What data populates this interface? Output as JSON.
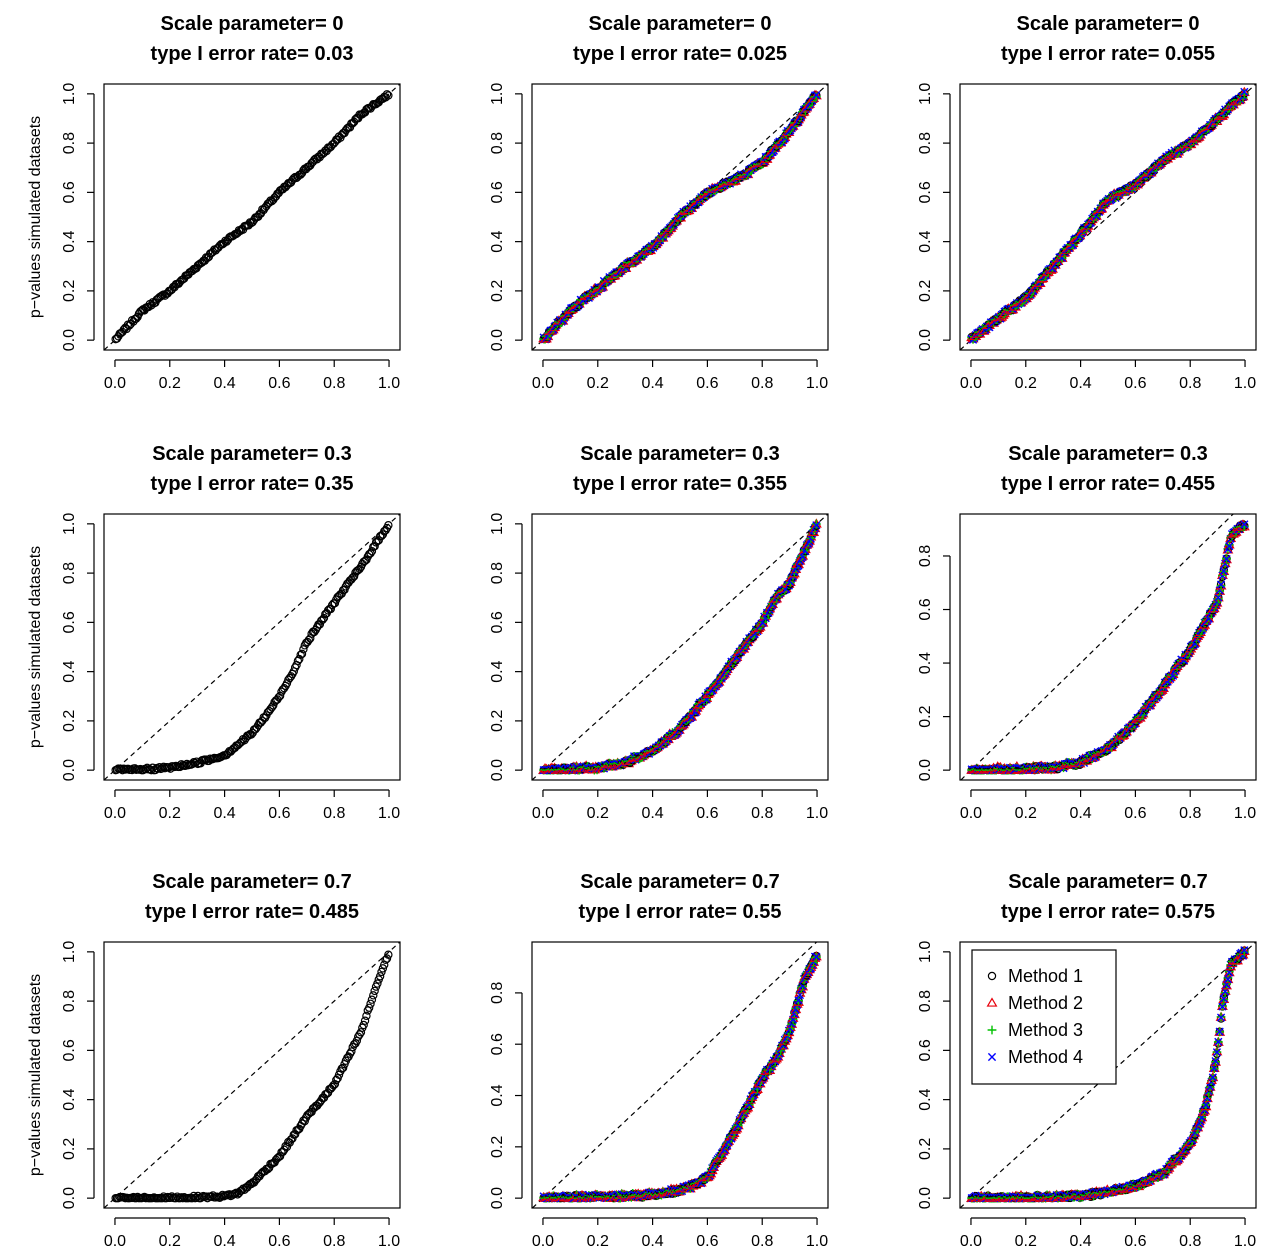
{
  "figure": {
    "ylabel": "p−values simulated datasets",
    "legend": {
      "placement": "top-left of bottom-right panel",
      "entries": [
        {
          "label": "Method 1",
          "marker": "circle",
          "color": "#000000"
        },
        {
          "label": "Method 2",
          "marker": "triangle",
          "color": "#e8000b"
        },
        {
          "label": "Method 3",
          "marker": "plus",
          "color": "#00c000"
        },
        {
          "label": "Method 4",
          "marker": "cross",
          "color": "#0000ff"
        }
      ]
    },
    "reference_line": "dashed diagonal y = x"
  },
  "chart_data": [
    {
      "type": "scatter",
      "title_line1": "Scale parameter= 0",
      "title_line2": "type I error rate= 0.03",
      "xlim": [
        0,
        1
      ],
      "ylim": [
        0,
        1
      ],
      "xticks": [
        "0.0",
        "0.2",
        "0.4",
        "0.6",
        "0.8",
        "1.0"
      ],
      "yticks": [
        "0.0",
        "0.2",
        "0.4",
        "0.6",
        "0.8",
        "1.0"
      ],
      "methods": 1,
      "series": [
        {
          "x": [
            0,
            0.1,
            0.2,
            0.3,
            0.4,
            0.5,
            0.6,
            0.7,
            0.8,
            0.9,
            1.0
          ],
          "y": [
            0,
            0.12,
            0.2,
            0.3,
            0.4,
            0.48,
            0.6,
            0.7,
            0.8,
            0.92,
            1.0
          ]
        }
      ]
    },
    {
      "type": "scatter",
      "title_line1": "Scale parameter= 0",
      "title_line2": "type I error rate= 0.025",
      "xlim": [
        0,
        1
      ],
      "ylim": [
        0,
        1
      ],
      "xticks": [
        "0.0",
        "0.2",
        "0.4",
        "0.6",
        "0.8",
        "1.0"
      ],
      "yticks": [
        "0.0",
        "0.2",
        "0.4",
        "0.6",
        "0.8",
        "1.0"
      ],
      "methods": 4,
      "series": [
        {
          "x": [
            0,
            0.1,
            0.2,
            0.3,
            0.4,
            0.5,
            0.6,
            0.7,
            0.8,
            0.9,
            1.0
          ],
          "y": [
            0,
            0.12,
            0.21,
            0.3,
            0.38,
            0.5,
            0.6,
            0.65,
            0.72,
            0.85,
            1.0
          ]
        }
      ]
    },
    {
      "type": "scatter",
      "title_line1": "Scale parameter= 0",
      "title_line2": "type I error rate= 0.055",
      "xlim": [
        0,
        1
      ],
      "ylim": [
        0,
        1
      ],
      "xticks": [
        "0.0",
        "0.2",
        "0.4",
        "0.6",
        "0.8",
        "1.0"
      ],
      "yticks": [
        "0.0",
        "0.2",
        "0.4",
        "0.6",
        "0.8",
        "1.0"
      ],
      "methods": 4,
      "series": [
        {
          "x": [
            0,
            0.1,
            0.2,
            0.3,
            0.4,
            0.5,
            0.6,
            0.7,
            0.8,
            0.9,
            1.0
          ],
          "y": [
            0,
            0.09,
            0.17,
            0.3,
            0.43,
            0.57,
            0.63,
            0.73,
            0.8,
            0.9,
            1.0
          ]
        }
      ]
    },
    {
      "type": "scatter",
      "title_line1": "Scale parameter= 0.3",
      "title_line2": "type I error rate= 0.35",
      "xlim": [
        0,
        1
      ],
      "ylim": [
        0,
        1
      ],
      "xticks": [
        "0.0",
        "0.2",
        "0.4",
        "0.6",
        "0.8",
        "1.0"
      ],
      "yticks": [
        "0.0",
        "0.2",
        "0.4",
        "0.6",
        "0.8",
        "1.0"
      ],
      "methods": 1,
      "series": [
        {
          "x": [
            0,
            0.1,
            0.2,
            0.3,
            0.4,
            0.5,
            0.55,
            0.6,
            0.65,
            0.7,
            0.8,
            0.9,
            1.0
          ],
          "y": [
            0,
            0.002,
            0.01,
            0.03,
            0.06,
            0.15,
            0.22,
            0.3,
            0.4,
            0.52,
            0.68,
            0.83,
            1.0
          ]
        }
      ]
    },
    {
      "type": "scatter",
      "title_line1": "Scale parameter= 0.3",
      "title_line2": "type I error rate= 0.355",
      "xlim": [
        0,
        1
      ],
      "ylim": [
        0,
        1
      ],
      "xticks": [
        "0.0",
        "0.2",
        "0.4",
        "0.6",
        "0.8",
        "1.0"
      ],
      "yticks": [
        "0.0",
        "0.2",
        "0.4",
        "0.6",
        "0.8",
        "1.0"
      ],
      "methods": 4,
      "series": [
        {
          "x": [
            0,
            0.1,
            0.2,
            0.3,
            0.4,
            0.5,
            0.6,
            0.7,
            0.8,
            0.85,
            0.9,
            0.95,
            1.0
          ],
          "y": [
            0,
            0.005,
            0.01,
            0.03,
            0.08,
            0.17,
            0.3,
            0.45,
            0.6,
            0.7,
            0.76,
            0.88,
            1.0
          ]
        }
      ]
    },
    {
      "type": "scatter",
      "title_line1": "Scale parameter= 0.3",
      "title_line2": "type I error rate= 0.455",
      "xlim": [
        0,
        1
      ],
      "ylim": [
        0,
        0.92
      ],
      "xticks": [
        "0.0",
        "0.2",
        "0.4",
        "0.6",
        "0.8",
        "1.0"
      ],
      "yticks": [
        "0.0",
        "0.2",
        "0.4",
        "0.6",
        "0.8"
      ],
      "methods": 4,
      "series": [
        {
          "x": [
            0,
            0.1,
            0.2,
            0.3,
            0.4,
            0.5,
            0.6,
            0.7,
            0.8,
            0.9,
            0.92,
            0.95,
            1.0
          ],
          "y": [
            0,
            0.002,
            0.005,
            0.01,
            0.03,
            0.08,
            0.18,
            0.31,
            0.45,
            0.63,
            0.73,
            0.88,
            0.92
          ]
        }
      ]
    },
    {
      "type": "scatter",
      "title_line1": "Scale parameter= 0.7",
      "title_line2": "type I error rate= 0.485",
      "xlim": [
        0,
        1
      ],
      "ylim": [
        0,
        1
      ],
      "xticks": [
        "0.0",
        "0.2",
        "0.4",
        "0.6",
        "0.8",
        "1.0"
      ],
      "yticks": [
        "0.0",
        "0.2",
        "0.4",
        "0.6",
        "0.8",
        "1.0"
      ],
      "methods": 1,
      "series": [
        {
          "x": [
            0,
            0.1,
            0.2,
            0.3,
            0.4,
            0.45,
            0.5,
            0.6,
            0.7,
            0.8,
            0.9,
            0.95,
            1.0
          ],
          "y": [
            0,
            0,
            0.001,
            0.003,
            0.008,
            0.02,
            0.06,
            0.17,
            0.33,
            0.46,
            0.68,
            0.85,
            1.0
          ]
        }
      ]
    },
    {
      "type": "scatter",
      "title_line1": "Scale parameter= 0.7",
      "title_line2": "type I error rate= 0.55",
      "xlim": [
        0,
        1
      ],
      "ylim": [
        0,
        0.96
      ],
      "xticks": [
        "0.0",
        "0.2",
        "0.4",
        "0.6",
        "0.8",
        "1.0"
      ],
      "yticks": [
        "0.0",
        "0.2",
        "0.4",
        "0.6",
        "0.8"
      ],
      "methods": 4,
      "series": [
        {
          "x": [
            0,
            0.1,
            0.2,
            0.3,
            0.4,
            0.5,
            0.55,
            0.6,
            0.7,
            0.8,
            0.85,
            0.9,
            0.95,
            1.0
          ],
          "y": [
            0,
            0.002,
            0.004,
            0.008,
            0.015,
            0.03,
            0.05,
            0.08,
            0.26,
            0.47,
            0.54,
            0.65,
            0.84,
            0.95
          ]
        }
      ]
    },
    {
      "type": "scatter",
      "title_line1": "Scale parameter= 0.7",
      "title_line2": "type I error rate= 0.575",
      "xlim": [
        0,
        1
      ],
      "ylim": [
        0,
        1
      ],
      "xticks": [
        "0.0",
        "0.2",
        "0.4",
        "0.6",
        "0.8",
        "1.0"
      ],
      "yticks": [
        "0.0",
        "0.2",
        "0.4",
        "0.6",
        "0.8",
        "1.0"
      ],
      "methods": 4,
      "series": [
        {
          "x": [
            0,
            0.1,
            0.2,
            0.3,
            0.4,
            0.5,
            0.6,
            0.7,
            0.8,
            0.85,
            0.88,
            0.9,
            0.92,
            0.95,
            1.0
          ],
          "y": [
            0,
            0,
            0.002,
            0.004,
            0.01,
            0.025,
            0.05,
            0.1,
            0.22,
            0.35,
            0.48,
            0.6,
            0.8,
            0.95,
            1.0
          ]
        }
      ]
    }
  ]
}
